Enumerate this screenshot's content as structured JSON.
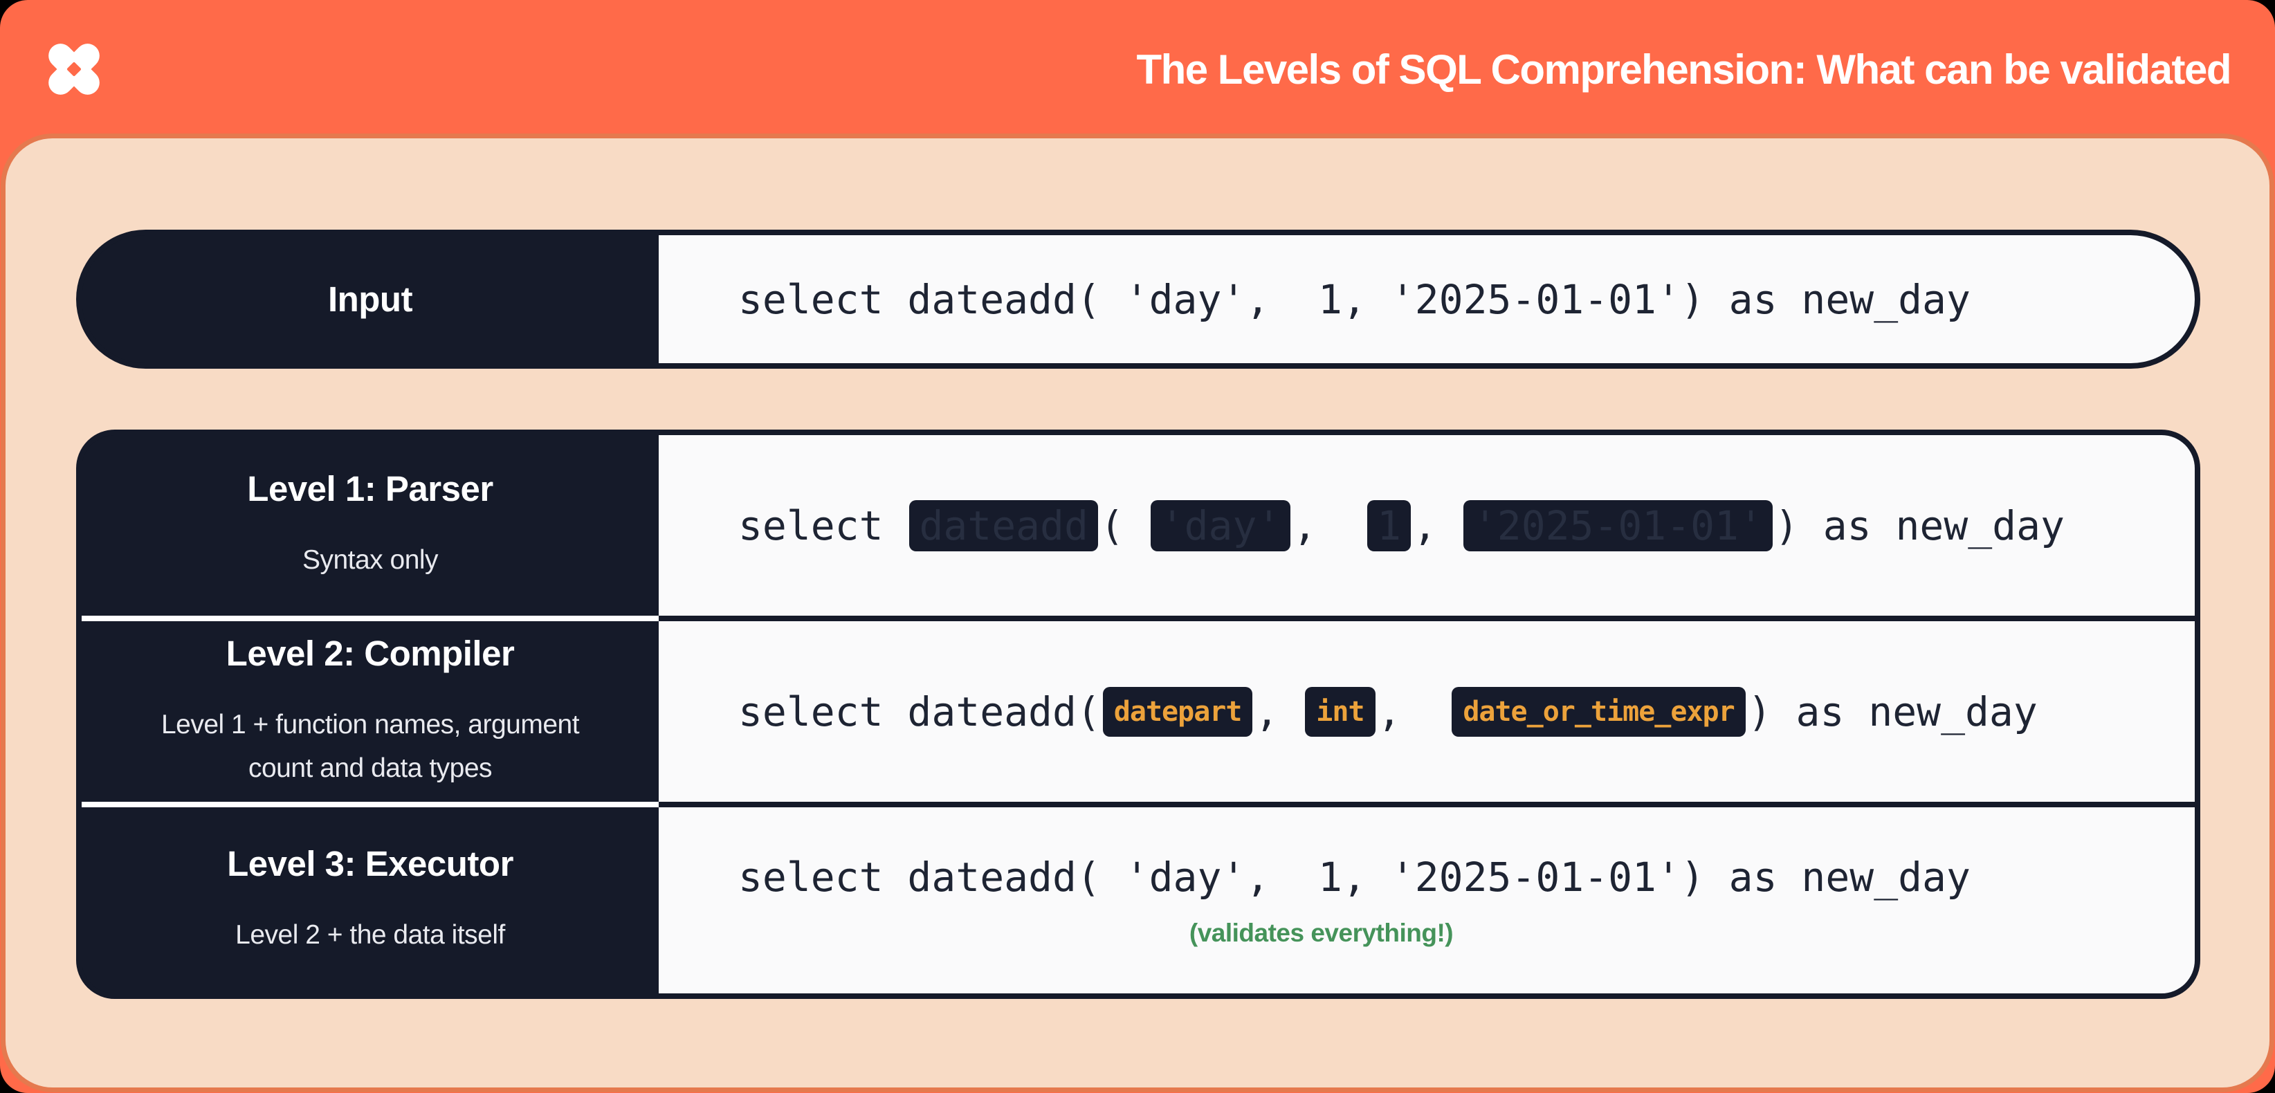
{
  "header": {
    "title": "The Levels of SQL Comprehension: What can be validated",
    "logo": "dbt-logo"
  },
  "colors": {
    "header_orange": "#FF6A49",
    "panel_peach": "#F8DBC5",
    "navy": "#151A29",
    "code_background": "#FAFAFB",
    "schema_token_orange": "#ECA23B",
    "validated_green": "#45935A"
  },
  "panel": {
    "input_row": {
      "label": "Input",
      "code": {
        "segments": [
          {
            "type": "plain",
            "text": "select dateadd( 'day',  1, '2025-01-01') as new_day"
          }
        ]
      }
    },
    "levels": [
      {
        "title": "Level 1: Parser",
        "subtitle": "Syntax only",
        "code": {
          "segments": [
            {
              "type": "plain",
              "text": "select "
            },
            {
              "type": "redacted",
              "text": "dateadd"
            },
            {
              "type": "plain",
              "text": "( "
            },
            {
              "type": "redacted",
              "text": "'day'"
            },
            {
              "type": "plain",
              "text": ",  "
            },
            {
              "type": "redacted",
              "text": "1"
            },
            {
              "type": "plain",
              "text": ", "
            },
            {
              "type": "redacted",
              "text": "'2025-01-01'"
            },
            {
              "type": "plain",
              "text": ") as new_day"
            }
          ]
        }
      },
      {
        "title": "Level 2: Compiler",
        "subtitle": "Level 1 + function names, argument count and data types",
        "code": {
          "segments": [
            {
              "type": "plain",
              "text": "select dateadd("
            },
            {
              "type": "schema",
              "text": "datepart"
            },
            {
              "type": "plain",
              "text": ", "
            },
            {
              "type": "schema",
              "text": "int"
            },
            {
              "type": "plain",
              "text": ",  "
            },
            {
              "type": "schema",
              "text": "date_or_time_expr"
            },
            {
              "type": "plain",
              "text": ") as new_day"
            }
          ]
        }
      },
      {
        "title": "Level 3: Executor",
        "subtitle": "Level 2 + the data itself",
        "code": {
          "segments": [
            {
              "type": "plain",
              "text": "select dateadd( 'day',  1, '2025-01-01') as new_day"
            }
          ]
        },
        "note": "(validates everything!)"
      }
    ]
  }
}
